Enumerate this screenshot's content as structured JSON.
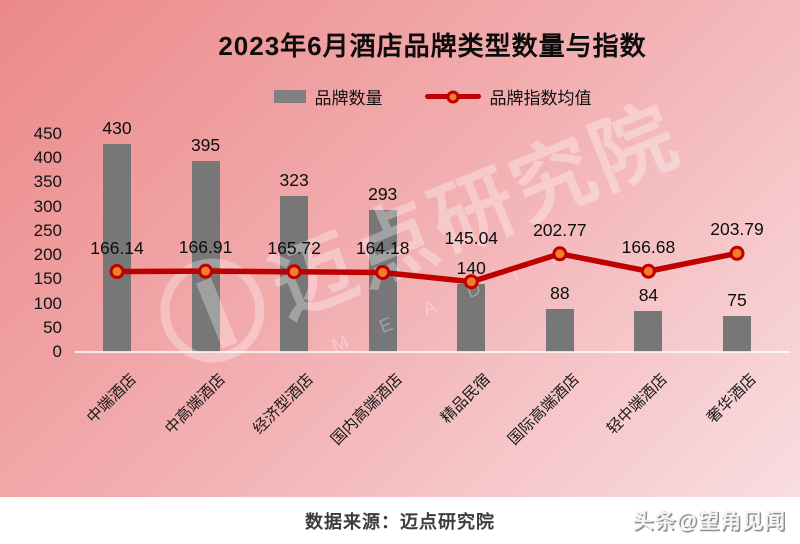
{
  "title": "2023年6月酒店品牌类型数量与指数",
  "legend": {
    "bars": "品牌数量",
    "line": "品牌指数均值"
  },
  "watermark": {
    "text": "迈点研究院",
    "subtext": "M E A D I N",
    "logo": "meadin-logo"
  },
  "footer": {
    "source": "数据来源：迈点研究院",
    "credit": "头条@望角见闻"
  },
  "colors": {
    "bar": "#777777",
    "line": "#c00000",
    "marker_fill": "#f07e2d",
    "marker_ring": "#c00000",
    "bg_from": "#ec8989",
    "bg_to": "#f9dde1",
    "text": "#0d0d0d"
  },
  "chart_data": {
    "type": "bar",
    "subtype": "bar+line combo",
    "categories": [
      "中端酒店",
      "中高端酒店",
      "经济型酒店",
      "国内高端酒店",
      "精品民宿",
      "国际高端酒店",
      "轻中端酒店",
      "奢华酒店"
    ],
    "series": [
      {
        "name": "品牌数量",
        "type": "bar",
        "values": [
          430,
          395,
          323,
          293,
          140,
          88,
          84,
          75
        ]
      },
      {
        "name": "品牌指数均值",
        "type": "line",
        "values": [
          166.14,
          166.91,
          165.72,
          164.18,
          145.04,
          202.77,
          166.68,
          203.79
        ]
      }
    ],
    "title": "2023年6月酒店品牌类型数量与指数",
    "xlabel": "",
    "ylabel": "",
    "ylim": [
      0,
      450
    ],
    "yticks": [
      450,
      400,
      350,
      300,
      250,
      200,
      150,
      100,
      50,
      0
    ],
    "grid": false,
    "legend_position": "top-center"
  }
}
